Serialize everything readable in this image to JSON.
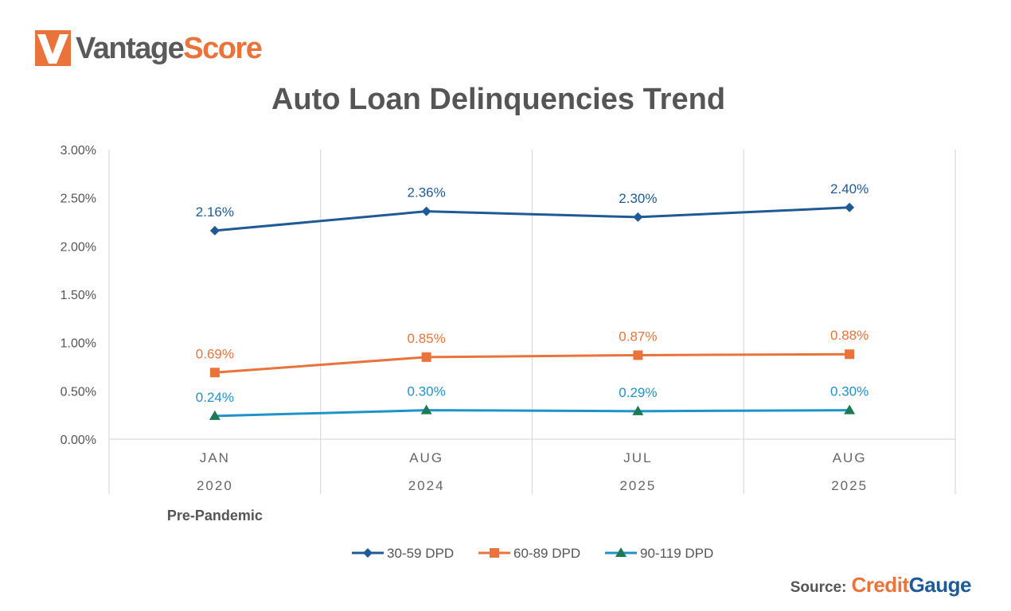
{
  "brand": {
    "logo_word_a": "Vantage",
    "logo_word_b": "Score",
    "logo_color": "#e9733a",
    "logo_word_a_color": "#5a5a5a"
  },
  "source": {
    "label": "Source:",
    "brand_a": "Credit",
    "brand_b": "Gauge"
  },
  "chart_data": {
    "type": "line",
    "title": "Auto Loan Delinquencies Trend",
    "xlabel": "",
    "ylabel": "",
    "ylim": [
      0,
      3
    ],
    "y_ticks": [
      "0.00%",
      "0.50%",
      "1.00%",
      "1.50%",
      "2.00%",
      "2.50%",
      "3.00%"
    ],
    "y_tick_values": [
      0,
      0.5,
      1,
      1.5,
      2,
      2.5,
      3
    ],
    "categories": [
      {
        "month": "JAN",
        "year": "2020"
      },
      {
        "month": "AUG",
        "year": "2024"
      },
      {
        "month": "JUL",
        "year": "2025"
      },
      {
        "month": "AUG",
        "year": "2025"
      }
    ],
    "annotation": "Pre-Pandemic",
    "grid": "vertical",
    "legend_position": "bottom",
    "series": [
      {
        "name": "30-59 DPD",
        "values": [
          2.16,
          2.36,
          2.3,
          2.4
        ],
        "labels": [
          "2.16%",
          "2.36%",
          "2.30%",
          "2.40%"
        ],
        "color": "#1e5b96",
        "marker": "diamond"
      },
      {
        "name": "60-89 DPD",
        "values": [
          0.69,
          0.85,
          0.87,
          0.88
        ],
        "labels": [
          "0.69%",
          "0.85%",
          "0.87%",
          "0.88%"
        ],
        "color": "#e9733a",
        "marker": "square"
      },
      {
        "name": "90-119 DPD",
        "values": [
          0.24,
          0.3,
          0.29,
          0.3
        ],
        "labels": [
          "0.24%",
          "0.30%",
          "0.29%",
          "0.30%"
        ],
        "color": "#1f93c8",
        "marker": "triangle",
        "marker_color": "#1b7a54"
      }
    ]
  }
}
